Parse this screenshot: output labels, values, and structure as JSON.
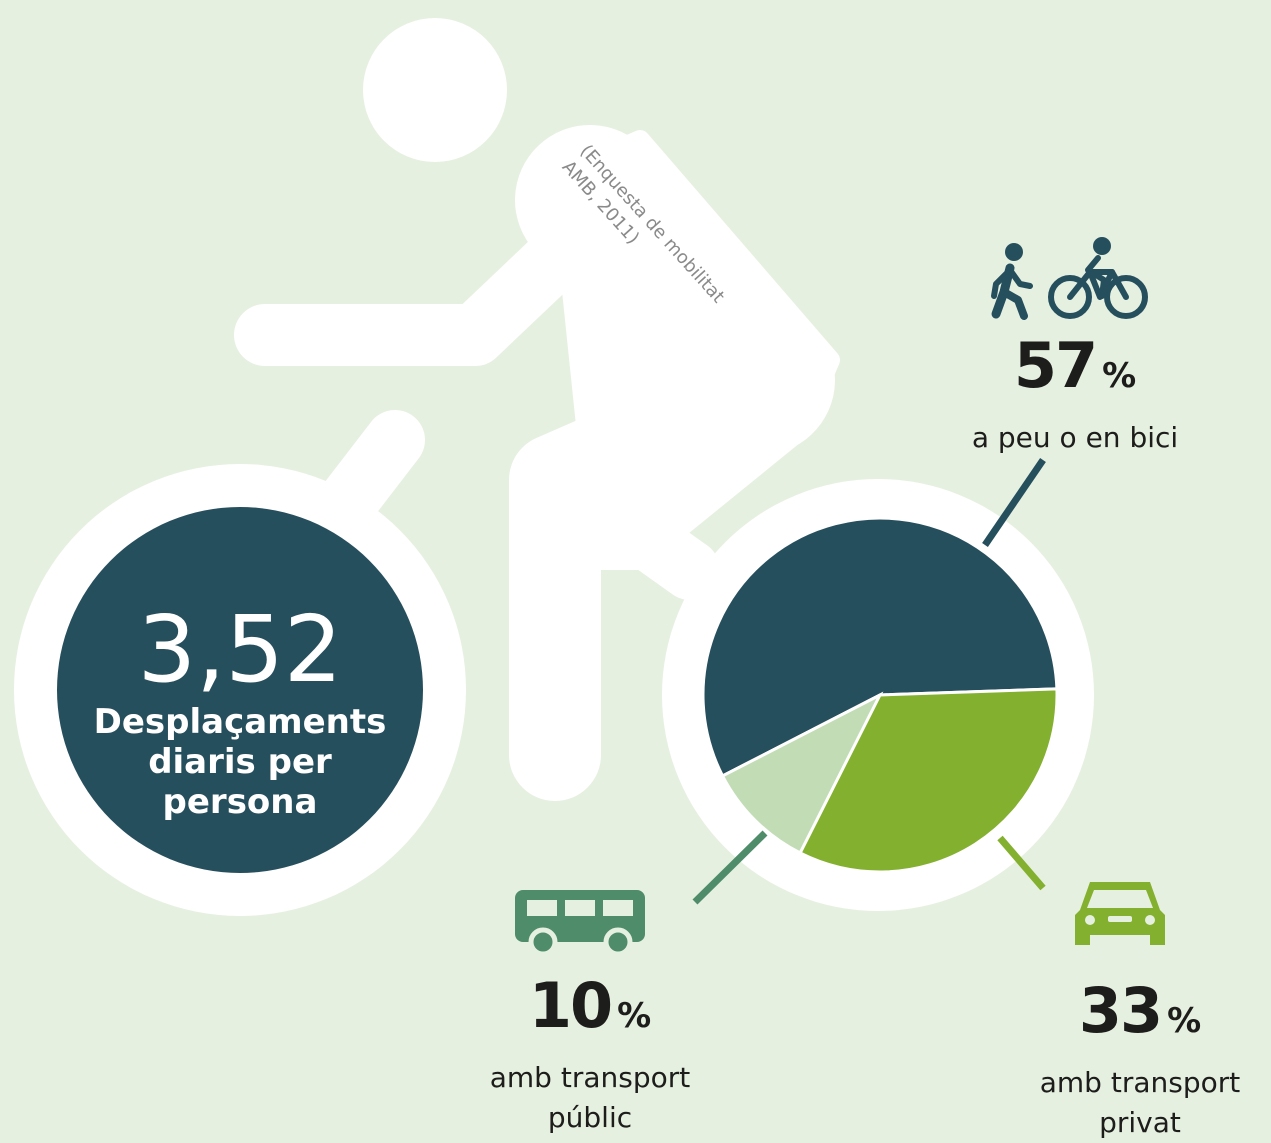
{
  "chart_data": {
    "type": "pie",
    "total_value": "3,52",
    "total_label": "Desplaçaments diaris per persona",
    "source": "(Enquesta de mobilitat AMB, 2011)",
    "categories": [
      "a peu o en bici",
      "amb transport públic",
      "amb transport privat"
    ],
    "values": [
      57,
      10,
      33
    ],
    "unit": "%",
    "colors": [
      "#264f5e",
      "#c2dcb5",
      "#84b02f"
    ]
  }
}
